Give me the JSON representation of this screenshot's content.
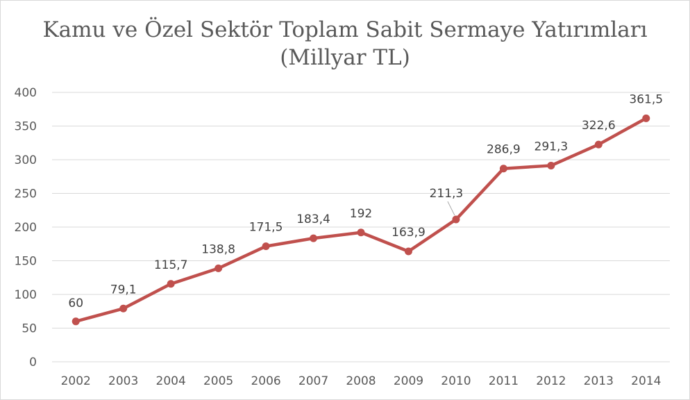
{
  "chart_data": {
    "type": "line",
    "title_line1": "Kamu ve Özel Sektör Toplam Sabit Sermaye Yatırımları",
    "title_line2": "(Millyar TL)",
    "xlabel": "",
    "ylabel": "",
    "ylim": [
      0,
      400
    ],
    "y_ticks": [
      0,
      50,
      100,
      150,
      200,
      250,
      300,
      350,
      400
    ],
    "grid": true,
    "legend": "none",
    "line_color": "#c0504d",
    "categories": [
      "2002",
      "2003",
      "2004",
      "2005",
      "2006",
      "2007",
      "2008",
      "2009",
      "2010",
      "2011",
      "2012",
      "2013",
      "2014"
    ],
    "series": [
      {
        "values": [
          60,
          79.1,
          115.7,
          138.8,
          171.5,
          183.4,
          192,
          163.9,
          211.3,
          286.9,
          291.3,
          322.6,
          361.5
        ],
        "labels": [
          "60",
          "79,1",
          "115,7",
          "138,8",
          "171,5",
          "183,4",
          "192",
          "163,9",
          "211,3",
          "286,9",
          "291,3",
          "322,6",
          "361,5"
        ]
      }
    ]
  }
}
